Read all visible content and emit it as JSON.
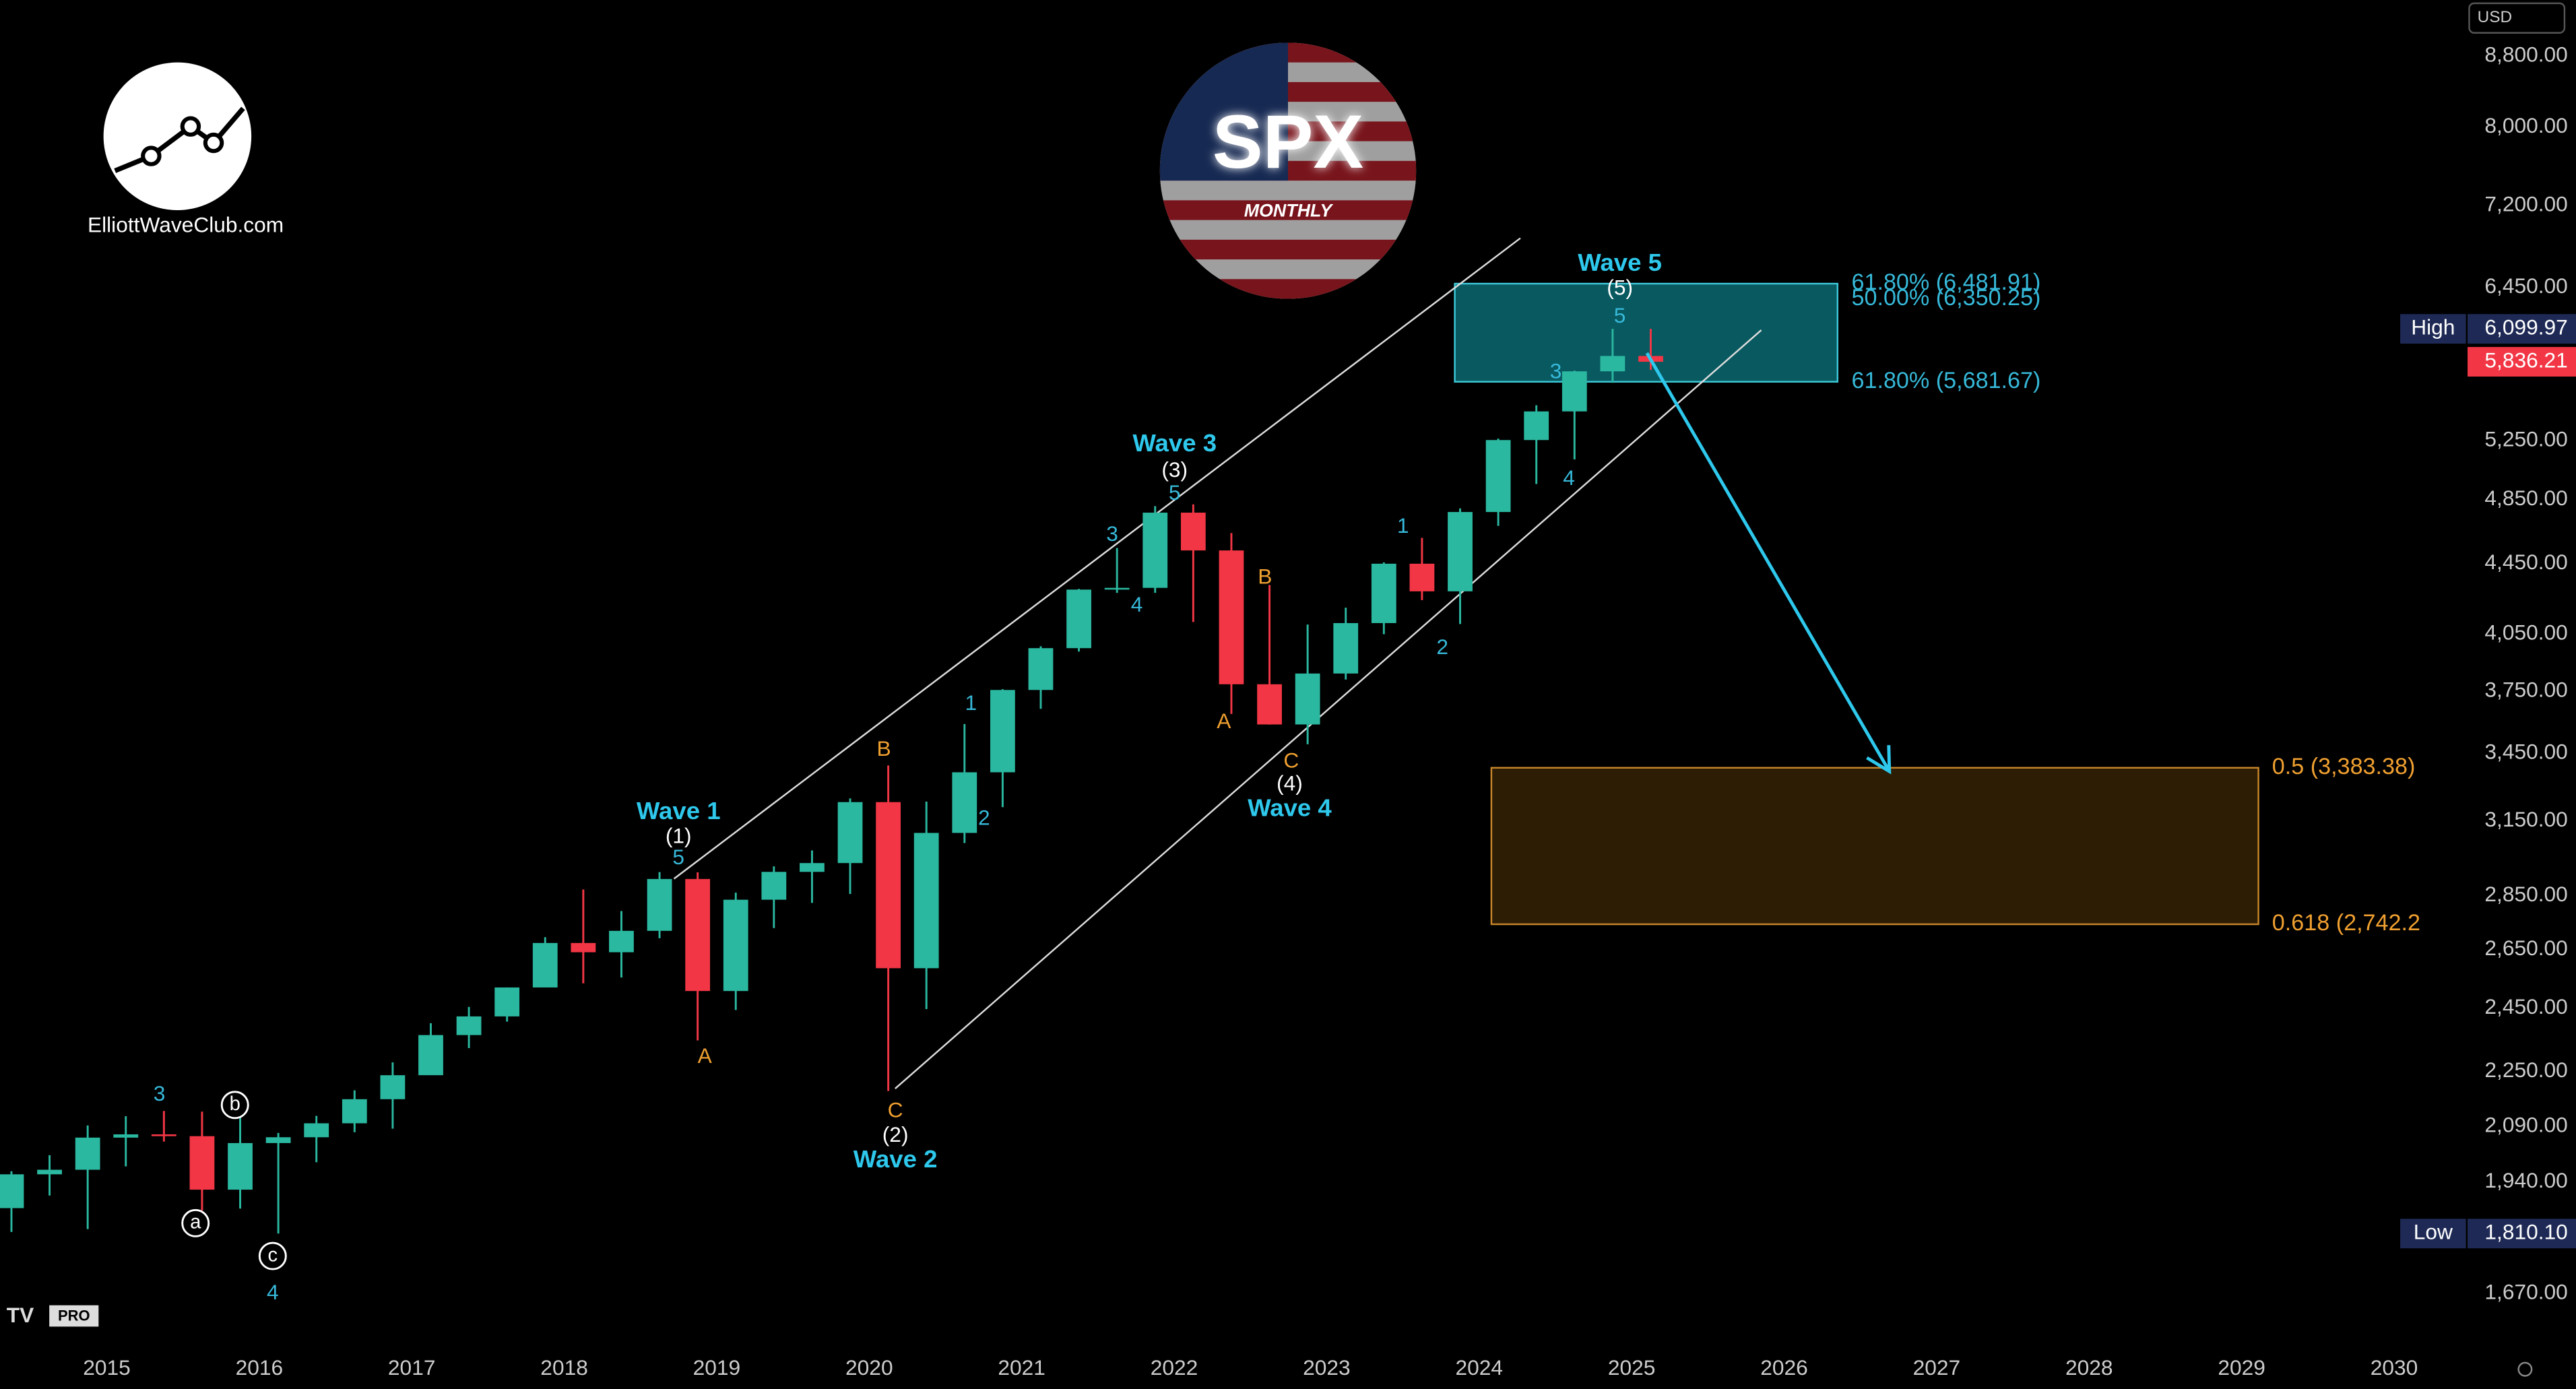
{
  "chart_data": {
    "type": "candlestick",
    "log_scale": true,
    "badge": {
      "title": "SPX",
      "subtitle": "MONTHLY"
    },
    "logo_text": "ElliottWaveClub.com",
    "currency": "USD",
    "plan": "PRO",
    "xlim": [
      2014.3,
      2030.46
    ],
    "ylim": [
      1573,
      9487
    ],
    "xticks": [
      2015,
      2016,
      2017,
      2018,
      2019,
      2020,
      2021,
      2022,
      2023,
      2024,
      2025,
      2026,
      2027,
      2028,
      2029,
      2030
    ],
    "yticks": [
      {
        "value": 1670,
        "label": "1,670.00"
      },
      {
        "value": 1940,
        "label": "1,940.00"
      },
      {
        "value": 2090,
        "label": "2,090.00"
      },
      {
        "value": 2250,
        "label": "2,250.00"
      },
      {
        "value": 2450,
        "label": "2,450.00"
      },
      {
        "value": 2650,
        "label": "2,650.00"
      },
      {
        "value": 2850,
        "label": "2,850.00"
      },
      {
        "value": 3150,
        "label": "3,150.00"
      },
      {
        "value": 3450,
        "label": "3,450.00"
      },
      {
        "value": 3750,
        "label": "3,750.00"
      },
      {
        "value": 4050,
        "label": "4,050.00"
      },
      {
        "value": 4450,
        "label": "4,450.00"
      },
      {
        "value": 4850,
        "label": "4,850.00"
      },
      {
        "value": 5250,
        "label": "5,250.00"
      },
      {
        "value": 6450,
        "label": "6,450.00"
      },
      {
        "value": 7200,
        "label": "7,200.00"
      },
      {
        "value": 8000,
        "label": "8,000.00"
      },
      {
        "value": 8800,
        "label": "8,800.00"
      }
    ],
    "up_color": "#2bb8a0",
    "down_color": "#f23645",
    "x": [
      2014.375,
      2014.625,
      2014.875,
      2015.125,
      2015.375,
      2015.625,
      2015.875,
      2016.125,
      2016.375,
      2016.625,
      2016.875,
      2017.125,
      2017.375,
      2017.625,
      2017.875,
      2018.125,
      2018.375,
      2018.625,
      2018.875,
      2019.125,
      2019.375,
      2019.625,
      2019.875,
      2020.125,
      2020.375,
      2020.625,
      2020.875,
      2021.125,
      2021.375,
      2021.625,
      2021.875,
      2022.125,
      2022.375,
      2022.625,
      2022.875,
      2023.125,
      2023.375,
      2023.625,
      2023.875,
      2024.125,
      2024.375,
      2024.625,
      2024.875,
      2025.125
    ],
    "open": [
      1873,
      1960,
      1972,
      2059,
      2068,
      2063,
      1920,
      2044,
      2060,
      2099,
      2168,
      2239,
      2363,
      2423,
      2519,
      2674,
      2641,
      2718,
      2914,
      2507,
      2834,
      2942,
      2977,
      3231,
      2585,
      3100,
      3363,
      3756,
      3973,
      4298,
      4308,
      4766,
      4530,
      3785,
      3586,
      3840,
      4109,
      4450,
      4288,
      4770,
      5254,
      5460,
      5762,
      5882
    ],
    "high": [
      1968,
      2011,
      2093,
      2119,
      2134,
      2132,
      2116,
      2072,
      2120,
      2194,
      2278,
      2401,
      2454,
      2519,
      2695,
      2873,
      2791,
      2941,
      2940,
      2861,
      2964,
      3028,
      3247,
      3394,
      3233,
      3588,
      3760,
      3983,
      4302,
      4545,
      4808,
      4819,
      4637,
      4325,
      4101,
      4195,
      4458,
      4607,
      4793,
      5264,
      5505,
      5767,
      6099.97,
      6099.97
    ],
    "low": [
      1814,
      1905,
      1821,
      1981,
      2048,
      1867,
      1872,
      1810.1,
      1992,
      2074,
      2084,
      2245,
      2322,
      2406,
      2520,
      2533,
      2553,
      2691,
      2346,
      2444,
      2728,
      2822,
      2856,
      2192,
      2447,
      3058,
      3209,
      3662,
      3955,
      4279,
      4279,
      4115,
      3637,
      3585,
      3492,
      3809,
      4048,
      4238,
      4104,
      4682,
      4953,
      5119,
      5674,
      5773
    ],
    "close": [
      1960,
      1972,
      2059,
      2068,
      2063,
      1920,
      2044,
      2060,
      2099,
      2168,
      2239,
      2363,
      2423,
      2519,
      2674,
      2641,
      2718,
      2914,
      2507,
      2834,
      2942,
      2977,
      3231,
      2585,
      3100,
      3363,
      3756,
      3973,
      4298,
      4308,
      4766,
      4530,
      3785,
      3586,
      3840,
      4109,
      4450,
      4288,
      4770,
      5254,
      5460,
      5762,
      5882,
      5836.21
    ],
    "price_markers": [
      {
        "label": "High",
        "value": 6099.97,
        "value_label": "6,099.97",
        "color": "#1e2a55"
      },
      {
        "value": 5836.21,
        "value_label": "5,836.21",
        "color": "#f23645"
      },
      {
        "label": "Low",
        "value": 1810.1,
        "value_label": "1,810.10",
        "color": "#1e2a55"
      }
    ],
    "levels": [
      {
        "value": 6481.91,
        "label": "61.80% (6,481.91)",
        "color": "#36b8d8"
      },
      {
        "value": 6350.25,
        "label": "50.00% (6,350.25)",
        "color": "#36b8d8"
      },
      {
        "value": 5681.67,
        "label": "61.80% (5,681.67)",
        "color": "#36b8d8"
      },
      {
        "value": 3383.38,
        "label": "0.5 (3,383.38)",
        "color": "#f0a030"
      },
      {
        "value": 2742.2,
        "label": "0.618 (2,742.2",
        "color": "#f0a030"
      }
    ],
    "zones": [
      {
        "xlim": [
          2023.84,
          2026.35
        ],
        "ylim": [
          5681.67,
          6481.91
        ],
        "color": "#0b6f78",
        "border": "#3cc8d8"
      },
      {
        "xlim": [
          2024.08,
          2029.11
        ],
        "ylim": [
          2742.2,
          3383.38
        ],
        "color": "#3a2406",
        "border": "#c8862a"
      }
    ],
    "trendlines": [
      {
        "x": [
          2018.72,
          2024.27
        ],
        "y": [
          2915,
          6890
        ],
        "color": "#dddddd"
      },
      {
        "x": [
          2020.17,
          2025.85
        ],
        "y": [
          2199,
          6090
        ],
        "color": "#dddddd"
      }
    ],
    "arrow": {
      "x": [
        2025.1,
        2026.69
      ],
      "y": [
        5905,
        3367
      ],
      "color": "#2ec8ec"
    },
    "annotations": [
      "Wave 1",
      "(1)",
      "5",
      "A",
      "B",
      "C",
      "(2)",
      "Wave 2",
      "1",
      "2",
      "3",
      "4",
      "Wave 3",
      "(3)",
      "5",
      "A",
      "B",
      "C",
      "(4)",
      "Wave 4",
      "1",
      "2",
      "3",
      "4",
      "Wave 5",
      "(5)",
      "5",
      "3",
      "4",
      "a",
      "b",
      "c"
    ]
  }
}
